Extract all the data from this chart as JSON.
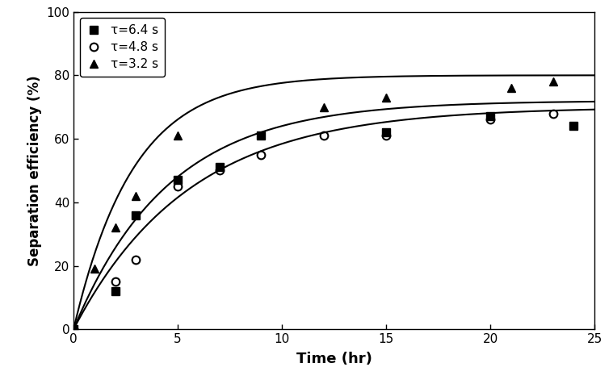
{
  "title": "",
  "xlabel": "Time (hr)",
  "ylabel": "Separation efficiency (%)",
  "xlim": [
    0,
    25
  ],
  "ylim": [
    0,
    100
  ],
  "xticks": [
    0,
    5,
    10,
    15,
    20,
    25
  ],
  "yticks": [
    0,
    20,
    40,
    60,
    80,
    100
  ],
  "series": [
    {
      "label": "τ=6.4 s",
      "marker": "s",
      "color": "black",
      "fillstyle": "full",
      "x": [
        0,
        2,
        3,
        5,
        7,
        9,
        15,
        20,
        24
      ],
      "y": [
        0,
        12,
        36,
        47,
        51,
        61,
        62,
        67,
        64
      ],
      "fit_A": 70.0,
      "fit_k": 0.18
    },
    {
      "label": "τ=4.8 s",
      "marker": "o",
      "color": "black",
      "fillstyle": "none",
      "x": [
        0,
        2,
        3,
        5,
        7,
        9,
        12,
        15,
        20,
        23
      ],
      "y": [
        0,
        15,
        22,
        45,
        50,
        55,
        61,
        61,
        66,
        68
      ],
      "fit_A": 72.0,
      "fit_k": 0.22
    },
    {
      "label": "τ=3.2 s",
      "marker": "^",
      "color": "black",
      "fillstyle": "full",
      "x": [
        0,
        1,
        2,
        3,
        5,
        12,
        15,
        21,
        23
      ],
      "y": [
        0,
        19,
        32,
        42,
        61,
        70,
        73,
        76,
        78
      ],
      "fit_A": 80.0,
      "fit_k": 0.35
    }
  ],
  "legend_loc": "upper left",
  "background_color": "#ffffff",
  "marker_size": 7,
  "line_color": "black",
  "line_width": 1.5
}
